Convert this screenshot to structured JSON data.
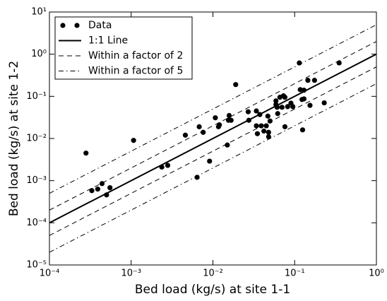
{
  "chart_data": {
    "type": "scatter",
    "xlabel": "Bed load (kg/s) at site 1-1",
    "ylabel": "Bed load (kg/s) at site 1-2",
    "xscale": "log",
    "yscale": "log",
    "xlim": [
      0.0001,
      1
    ],
    "ylim": [
      1e-05,
      10
    ],
    "xticks": [
      {
        "value": 0.0001,
        "label": "10⁻⁴"
      },
      {
        "value": 0.001,
        "label": "10⁻³"
      },
      {
        "value": 0.01,
        "label": "10⁻²"
      },
      {
        "value": 0.1,
        "label": "10⁻¹"
      },
      {
        "value": 1,
        "label": "10⁰"
      }
    ],
    "yticks": [
      {
        "value": 1e-05,
        "label": "10⁻⁵"
      },
      {
        "value": 0.0001,
        "label": "10⁻⁴"
      },
      {
        "value": 0.001,
        "label": "10⁻³"
      },
      {
        "value": 0.01,
        "label": "10⁻²"
      },
      {
        "value": 0.1,
        "label": "10⁻¹"
      },
      {
        "value": 1,
        "label": "10⁰"
      },
      {
        "value": 10,
        "label": "10¹"
      }
    ],
    "legend": "upper left",
    "series": [
      {
        "name": "Data",
        "color": "#000000",
        "x": [
          0.00028,
          0.00033,
          0.00039,
          0.00044,
          0.0005,
          0.00055,
          0.00107,
          0.00237,
          0.0028,
          0.0046,
          0.0064,
          0.0068,
          0.0076,
          0.0091,
          0.0107,
          0.0117,
          0.012,
          0.015,
          0.0155,
          0.0158,
          0.0167,
          0.019,
          0.027,
          0.0275,
          0.034,
          0.034,
          0.035,
          0.0375,
          0.039,
          0.042,
          0.045,
          0.047,
          0.048,
          0.048,
          0.05,
          0.059,
          0.059,
          0.061,
          0.062,
          0.066,
          0.07,
          0.073,
          0.076,
          0.076,
          0.082,
          0.09,
          0.095,
          0.114,
          0.117,
          0.123,
          0.125,
          0.13,
          0.13,
          0.145,
          0.154,
          0.175,
          0.23,
          0.35
        ],
        "y": [
          0.0045,
          0.00058,
          0.00063,
          0.00085,
          0.00046,
          0.00068,
          0.009,
          0.0021,
          0.0023,
          0.012,
          0.0012,
          0.019,
          0.014,
          0.0029,
          0.031,
          0.019,
          0.021,
          0.007,
          0.027,
          0.035,
          0.027,
          0.19,
          0.043,
          0.027,
          0.02,
          0.045,
          0.013,
          0.037,
          0.02,
          0.015,
          0.02,
          0.034,
          0.011,
          0.014,
          0.026,
          0.078,
          0.064,
          0.055,
          0.039,
          0.095,
          0.055,
          0.103,
          0.095,
          0.019,
          0.057,
          0.069,
          0.057,
          0.62,
          0.144,
          0.084,
          0.016,
          0.087,
          0.14,
          0.24,
          0.061,
          0.24,
          0.07,
          0.62
        ]
      }
    ],
    "reference_lines": [
      {
        "name": "1:1 Line",
        "factor": 1,
        "style": "solid"
      },
      {
        "name": "Within a factor of 2",
        "factor": 2,
        "style": "dashed"
      },
      {
        "name": "Within a factor of 5",
        "factor": 5,
        "style": "dashdot"
      }
    ]
  }
}
